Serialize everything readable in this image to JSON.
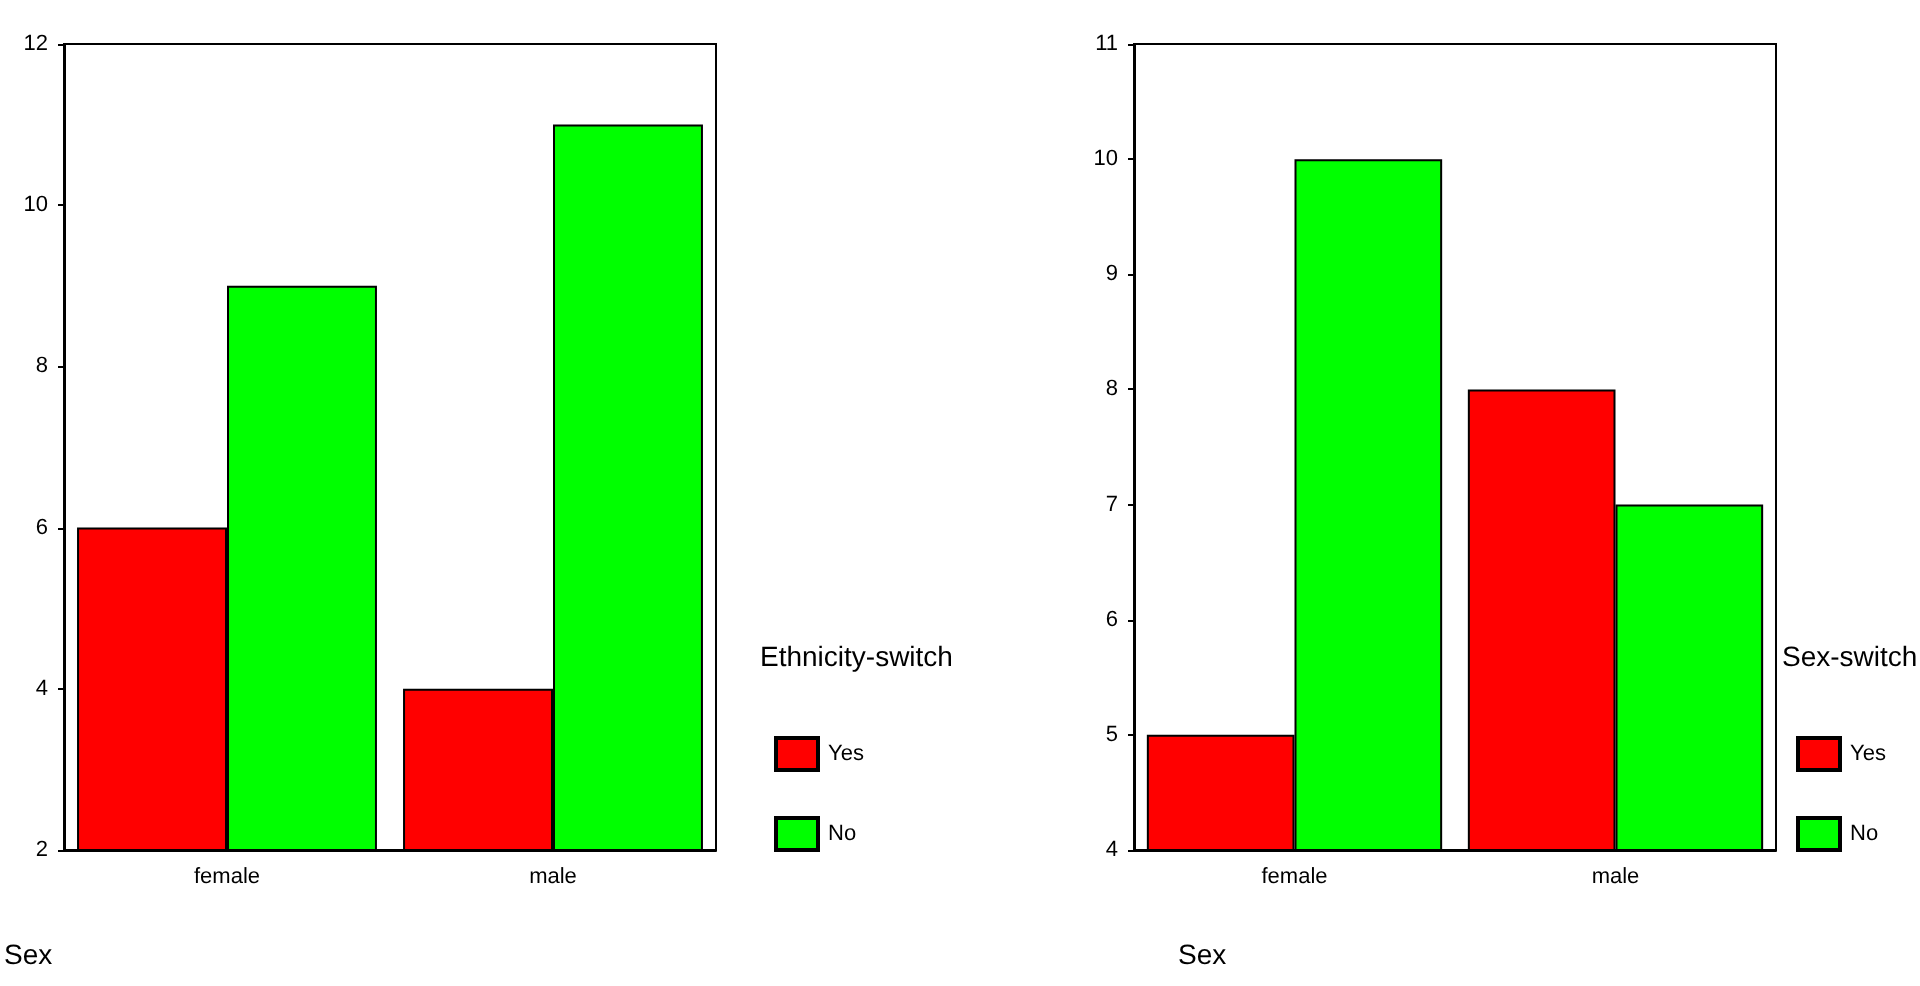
{
  "chart_data": [
    {
      "type": "bar",
      "xlabel": "Sex",
      "legend_title": "Ethnicity-switch",
      "categories": [
        "female",
        "male"
      ],
      "series": [
        {
          "name": "Yes",
          "color": "#ff0000",
          "values": [
            6,
            4
          ]
        },
        {
          "name": "No",
          "color": "#00ff00",
          "values": [
            9,
            11
          ]
        }
      ],
      "ylim": [
        2,
        12
      ],
      "yticks": [
        2,
        4,
        6,
        8,
        10,
        12
      ],
      "grid": false,
      "legend": "right"
    },
    {
      "type": "bar",
      "xlabel": "Sex",
      "legend_title": "Sex-switch",
      "categories": [
        "female",
        "male"
      ],
      "series": [
        {
          "name": "Yes",
          "color": "#ff0000",
          "values": [
            5,
            8
          ]
        },
        {
          "name": "No",
          "color": "#00ff00",
          "values": [
            10,
            7
          ]
        }
      ],
      "ylim": [
        4,
        11
      ],
      "yticks": [
        4,
        5,
        6,
        7,
        8,
        9,
        10,
        11
      ],
      "grid": false,
      "legend": "right"
    }
  ]
}
